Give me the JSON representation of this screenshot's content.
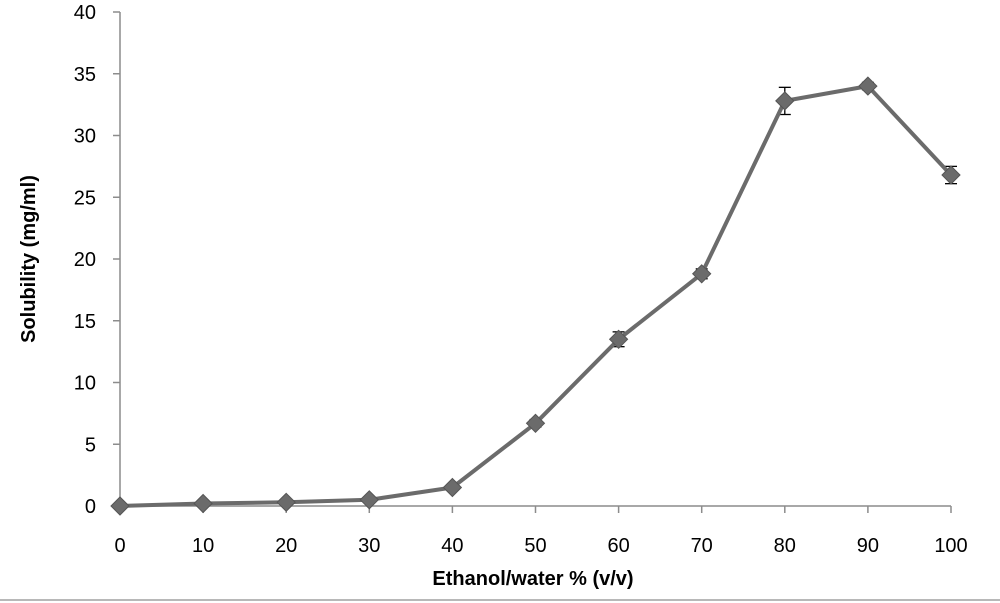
{
  "chart_data": {
    "type": "line",
    "xlabel": "Ethanol/water % (v/v)",
    "ylabel": "Solubility (mg/ml)",
    "x": [
      0,
      10,
      20,
      30,
      40,
      50,
      60,
      70,
      80,
      90,
      100
    ],
    "x_ticks": [
      "0",
      "10",
      "20",
      "30",
      "40",
      "50",
      "60",
      "70",
      "80",
      "90",
      "100"
    ],
    "y_ticks": [
      "0",
      "5",
      "10",
      "15",
      "20",
      "25",
      "30",
      "35",
      "40"
    ],
    "xlim": [
      0,
      100
    ],
    "ylim": [
      0,
      40
    ],
    "grid": false,
    "legend": "none",
    "marker": "diamond",
    "series": [
      {
        "values": [
          0.0,
          0.2,
          0.3,
          0.5,
          1.5,
          6.7,
          13.5,
          18.8,
          32.8,
          34.0,
          26.8
        ],
        "error": [
          0.05,
          0.1,
          0.1,
          0.15,
          0.2,
          0.3,
          0.6,
          0.4,
          1.1,
          0.3,
          0.7
        ],
        "color": "#6b6b6b"
      }
    ]
  }
}
